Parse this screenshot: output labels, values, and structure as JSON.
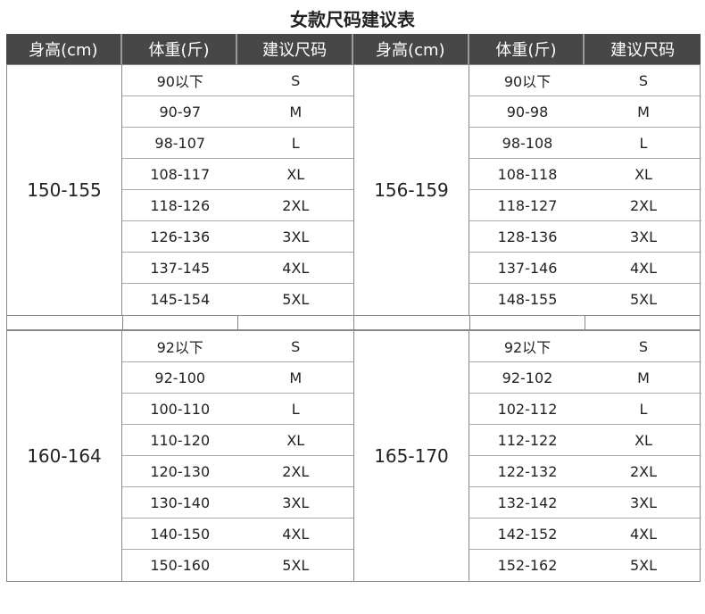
{
  "title": "女款尺码建议表",
  "headers": [
    "身高(cm)",
    "体重(斤)",
    "建议尺码",
    "身高(cm)",
    "体重(斤)",
    "建议尺码"
  ],
  "blocks": [
    {
      "groups": [
        {
          "height": "150-155",
          "rows": [
            [
              "90以下",
              "S"
            ],
            [
              "90-97",
              "M"
            ],
            [
              "98-107",
              "L"
            ],
            [
              "108-117",
              "XL"
            ],
            [
              "118-126",
              "2XL"
            ],
            [
              "126-136",
              "3XL"
            ],
            [
              "137-145",
              "4XL"
            ],
            [
              "145-154",
              "5XL"
            ]
          ]
        },
        {
          "height": "156-159",
          "rows": [
            [
              "90以下",
              "S"
            ],
            [
              "90-98",
              "M"
            ],
            [
              "98-108",
              "L"
            ],
            [
              "108-118",
              "XL"
            ],
            [
              "118-127",
              "2XL"
            ],
            [
              "128-136",
              "3XL"
            ],
            [
              "137-146",
              "4XL"
            ],
            [
              "148-155",
              "5XL"
            ]
          ]
        }
      ]
    },
    {
      "groups": [
        {
          "height": "160-164",
          "rows": [
            [
              "92以下",
              "S"
            ],
            [
              "92-100",
              "M"
            ],
            [
              "100-110",
              "L"
            ],
            [
              "110-120",
              "XL"
            ],
            [
              "120-130",
              "2XL"
            ],
            [
              "130-140",
              "3XL"
            ],
            [
              "140-150",
              "4XL"
            ],
            [
              "150-160",
              "5XL"
            ]
          ]
        },
        {
          "height": "165-170",
          "rows": [
            [
              "92以下",
              "S"
            ],
            [
              "92-102",
              "M"
            ],
            [
              "102-112",
              "L"
            ],
            [
              "112-122",
              "XL"
            ],
            [
              "122-132",
              "2XL"
            ],
            [
              "132-142",
              "3XL"
            ],
            [
              "142-152",
              "4XL"
            ],
            [
              "152-162",
              "5XL"
            ]
          ]
        }
      ]
    }
  ]
}
